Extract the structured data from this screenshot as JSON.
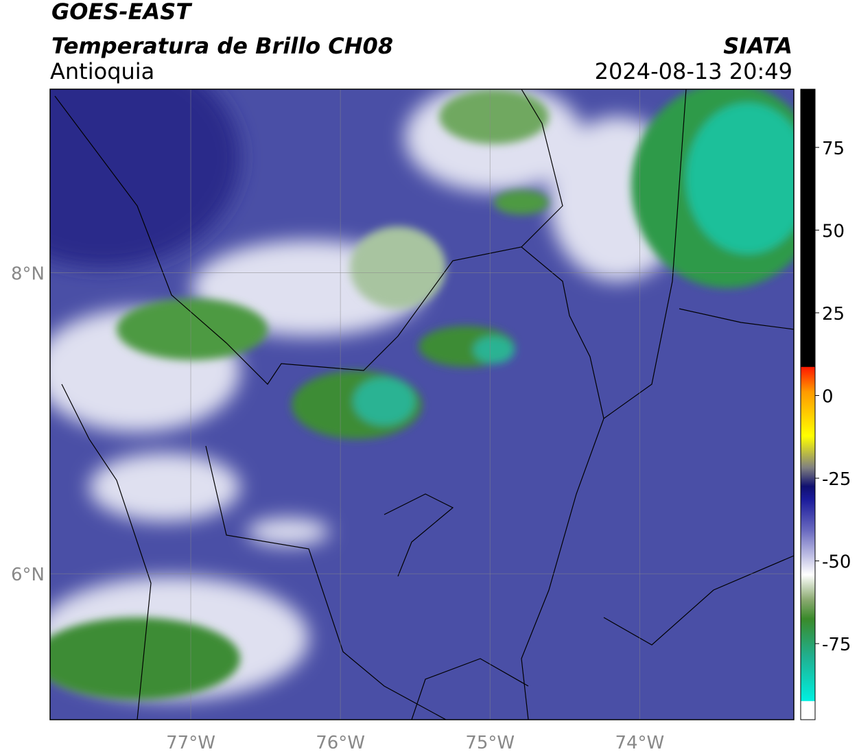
{
  "header": {
    "title": "GOES-EAST",
    "subtitle": "Temperatura de Brillo CH08",
    "region": "Antioquia",
    "source": "SIATA",
    "datetime": "2024-08-13 20:49"
  },
  "map": {
    "xlim": [
      -77.94,
      -72.97
    ],
    "ylim": [
      5.03,
      9.22
    ],
    "xticks": [
      {
        "value": -77,
        "label": "77°W"
      },
      {
        "value": -76,
        "label": "76°W"
      },
      {
        "value": -75,
        "label": "75°W"
      },
      {
        "value": -74,
        "label": "74°W"
      }
    ],
    "yticks": [
      {
        "value": 8,
        "label": "8°N"
      },
      {
        "value": 6,
        "label": "6°N"
      }
    ]
  },
  "colorbar": {
    "lim": [
      -98,
      92.6
    ],
    "ticks": [
      75,
      50,
      25,
      0,
      -25,
      -50,
      -75
    ]
  }
}
